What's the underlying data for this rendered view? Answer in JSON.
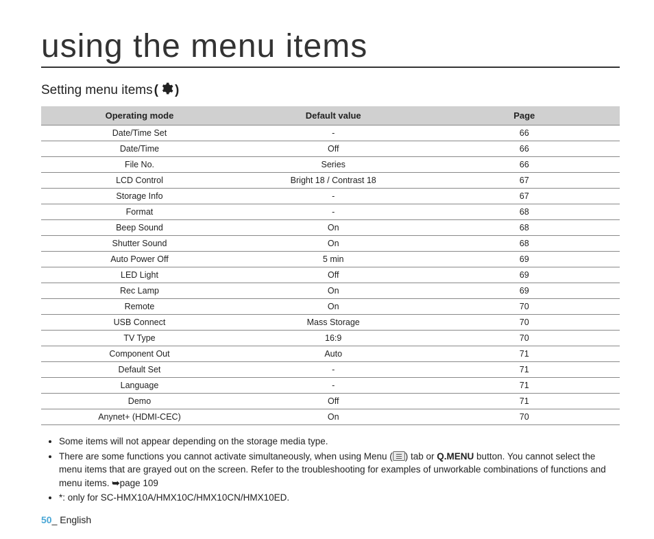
{
  "title": "using the menu items",
  "subtitle_prefix": "Setting menu items ",
  "subtitle_paren_open": "(",
  "subtitle_paren_close": ")",
  "table": {
    "headers": [
      "Operating mode",
      "Default value",
      "Page"
    ],
    "rows": [
      [
        "Date/Time Set",
        "-",
        "66"
      ],
      [
        "Date/Time",
        "Off",
        "66"
      ],
      [
        "File No.",
        "Series",
        "66"
      ],
      [
        "LCD Control",
        "Bright 18 / Contrast 18",
        "67"
      ],
      [
        "Storage Info",
        "-",
        "67"
      ],
      [
        "Format",
        "-",
        "68"
      ],
      [
        "Beep Sound",
        "On",
        "68"
      ],
      [
        "Shutter Sound",
        "On",
        "68"
      ],
      [
        "Auto Power Off",
        "5 min",
        "69"
      ],
      [
        "LED Light",
        "Off",
        "69"
      ],
      [
        "Rec Lamp",
        "On",
        "69"
      ],
      [
        "Remote",
        "On",
        "70"
      ],
      [
        "USB Connect",
        "Mass Storage",
        "70"
      ],
      [
        "TV Type",
        "16:9",
        "70"
      ],
      [
        "Component Out",
        "Auto",
        "71"
      ],
      [
        "Default Set",
        "-",
        "71"
      ],
      [
        "Language",
        "-",
        "71"
      ],
      [
        "Demo",
        "Off",
        "71"
      ],
      [
        "Anynet+ (HDMI-CEC)",
        "On",
        "70"
      ]
    ]
  },
  "notes": {
    "n1": "Some items will not appear depending on the storage media type.",
    "n2a": "There are some functions you cannot activate simultaneously, when using Menu (",
    "n2b": ") tab or ",
    "n2c_qmenu": "Q.MENU",
    "n2d": " button. You cannot select the menu items that are grayed out on the screen. Refer to the troubleshooting for examples of unworkable combinations of functions and menu items. ",
    "n2_arrow": "➥",
    "n2_page": "page 109",
    "n3": "*: only for SC-HMX10A/HMX10C/HMX10CN/HMX10ED."
  },
  "footer": {
    "page_number": "50",
    "sep": "_ ",
    "lang": "English"
  },
  "colors": {
    "header_bg": "#d0d0d0",
    "border": "#888888",
    "text": "#222222",
    "page_number": "#4aa7d6"
  }
}
